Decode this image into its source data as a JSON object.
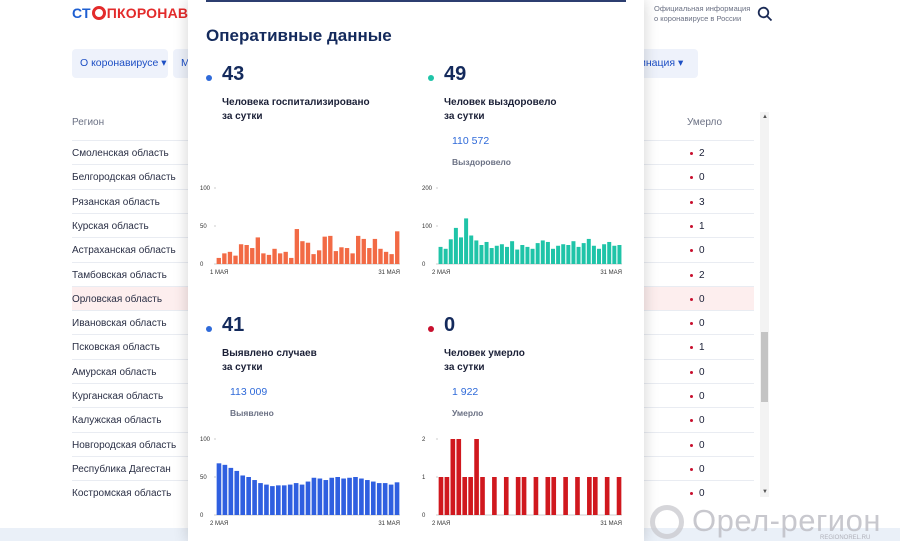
{
  "header": {
    "logo_prefix": "СТ",
    "logo_suffix": "ПКОРОНАВИ",
    "official_info": "Официальная информация о коронавирусе в России"
  },
  "nav": {
    "item1": "О коронавирусе ▾",
    "item2": "М",
    "item3": "цинация ▾"
  },
  "table": {
    "col_region": "Регион",
    "col_died": "Умерло",
    "rows": [
      {
        "region": "Смоленская область",
        "died": "2"
      },
      {
        "region": "Белгородская область",
        "died": "0"
      },
      {
        "region": "Рязанская область",
        "died": "3"
      },
      {
        "region": "Курская область",
        "died": "1"
      },
      {
        "region": "Астраханская область",
        "died": "0"
      },
      {
        "region": "Тамбовская область",
        "died": "2"
      },
      {
        "region": "Орловская область",
        "died": "0"
      },
      {
        "region": "Ивановская область",
        "died": "0"
      },
      {
        "region": "Псковская область",
        "died": "1"
      },
      {
        "region": "Амурская область",
        "died": "0"
      },
      {
        "region": "Курганская область",
        "died": "0"
      },
      {
        "region": "Калужская область",
        "died": "0"
      },
      {
        "region": "Новгородская область",
        "died": "0"
      },
      {
        "region": "Республика Дагестан",
        "died": "0"
      },
      {
        "region": "Костромская область",
        "died": "0"
      }
    ],
    "highlighted_row": 6
  },
  "modal": {
    "title": "Оперативные данные",
    "stats": [
      {
        "value": "43",
        "desc1": "Человека госпитализировано",
        "desc2": "за сутки",
        "total": "",
        "total_label": "",
        "color": "#2f6ad9"
      },
      {
        "value": "49",
        "desc1": "Человек выздоровело",
        "desc2": "за сутки",
        "total": "110 572",
        "total_label": "Выздоровело",
        "color": "#1fc4a8"
      },
      {
        "value": "41",
        "desc1": "Выявлено случаев",
        "desc2": "за сутки",
        "total": "113 009",
        "total_label": "Выявлено",
        "color": "#2f6ad9"
      },
      {
        "value": "0",
        "desc1": "Человек умерло",
        "desc2": "за сутки",
        "total": "1 922",
        "total_label": "Умерло",
        "color": "#c8102e"
      }
    ]
  },
  "chart_data": [
    {
      "type": "bar",
      "color": "#f26a45",
      "yticks": [
        "100",
        "50",
        "0"
      ],
      "ylim": [
        0,
        100
      ],
      "x_start": "1 МАЯ",
      "x_end": "31 МАЯ",
      "values": [
        8,
        14,
        16,
        11,
        26,
        25,
        21,
        35,
        14,
        12,
        20,
        14,
        16,
        8,
        46,
        30,
        28,
        13,
        18,
        36,
        37,
        17,
        22,
        21,
        14,
        37,
        33,
        21,
        33,
        20,
        16,
        13,
        43
      ]
    },
    {
      "type": "bar",
      "color": "#1fc4a8",
      "yticks": [
        "200",
        "100",
        "0"
      ],
      "ylim": [
        0,
        200
      ],
      "x_start": "2 МАЯ",
      "x_end": "31 МАЯ",
      "values": [
        45,
        40,
        65,
        95,
        70,
        120,
        75,
        62,
        50,
        58,
        42,
        48,
        52,
        45,
        60,
        38,
        50,
        45,
        40,
        55,
        62,
        58,
        40,
        48,
        52,
        50,
        60,
        45,
        55,
        66,
        48,
        40,
        52,
        58,
        48,
        50
      ]
    },
    {
      "type": "bar",
      "color": "#2f5fe0",
      "yticks": [
        "100",
        "50",
        "0"
      ],
      "ylim": [
        0,
        100
      ],
      "x_start": "2 МАЯ",
      "x_end": "31 МАЯ",
      "values": [
        68,
        66,
        62,
        58,
        52,
        50,
        46,
        42,
        40,
        38,
        39,
        39,
        40,
        42,
        40,
        44,
        49,
        48,
        46,
        49,
        50,
        48,
        49,
        50,
        48,
        46,
        44,
        42,
        42,
        40,
        43
      ]
    },
    {
      "type": "bar",
      "color": "#d0181e",
      "yticks": [
        "2",
        "1",
        "0"
      ],
      "ylim": [
        0,
        2
      ],
      "x_start": "2 МАЯ",
      "x_end": "31 МАЯ",
      "values": [
        1,
        1,
        2,
        2,
        1,
        1,
        2,
        1,
        0,
        1,
        0,
        1,
        0,
        1,
        1,
        0,
        1,
        0,
        1,
        1,
        0,
        1,
        0,
        1,
        0,
        1,
        1,
        0,
        1,
        0,
        1
      ]
    }
  ],
  "watermark": {
    "text": "Орел-регион",
    "sub": "REGIONOREL.RU"
  }
}
